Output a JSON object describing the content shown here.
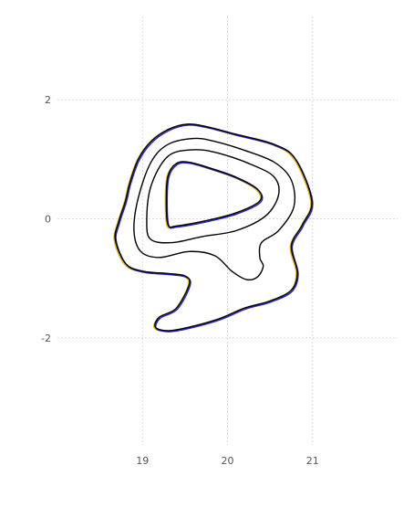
{
  "chart_data": {
    "type": "line",
    "title": "",
    "xlabel": "",
    "ylabel": "",
    "xlim": [
      18.0,
      22.0
    ],
    "ylim": [
      -3.8,
      3.4
    ],
    "grid": true,
    "x_ticks": [
      19,
      20,
      21
    ],
    "x_tick_labels": [
      "19",
      "20",
      "21"
    ],
    "y_ticks": [
      -2,
      0,
      2
    ],
    "y_tick_labels": [
      "-2",
      "0",
      "2"
    ],
    "series_colors": [
      "#e6b800",
      "#2020d0",
      "#000000"
    ],
    "series": [
      {
        "color": "#e6b800",
        "level": "outer",
        "x": [
          19.52,
          19.75,
          20.1,
          20.55,
          20.8,
          20.99,
          20.88,
          20.75,
          20.82,
          20.75,
          20.5,
          20.2,
          19.9,
          19.55,
          19.3,
          19.15,
          19.2,
          19.4,
          19.55,
          19.5,
          19.3,
          19.0,
          18.8,
          18.68,
          18.72,
          18.8,
          18.85,
          18.95,
          19.1,
          19.3
        ],
        "y": [
          1.59,
          1.55,
          1.42,
          1.25,
          1.0,
          0.3,
          -0.1,
          -0.45,
          -0.9,
          -1.2,
          -1.38,
          -1.5,
          -1.68,
          -1.82,
          -1.88,
          -1.82,
          -1.65,
          -1.5,
          -1.1,
          -0.96,
          -0.92,
          -0.88,
          -0.75,
          -0.35,
          -0.05,
          0.3,
          0.6,
          1.0,
          1.3,
          1.5
        ]
      },
      {
        "color": "#2020d0",
        "level": "outer",
        "x": [
          19.52,
          19.75,
          20.1,
          20.55,
          20.8,
          20.99,
          20.88,
          20.75,
          20.82,
          20.75,
          20.5,
          20.2,
          19.9,
          19.55,
          19.3,
          19.15,
          19.2,
          19.4,
          19.55,
          19.5,
          19.3,
          19.0,
          18.8,
          18.68,
          18.72,
          18.8,
          18.85,
          18.95,
          19.1,
          19.3
        ],
        "y": [
          1.59,
          1.55,
          1.42,
          1.25,
          1.0,
          0.3,
          -0.1,
          -0.45,
          -0.9,
          -1.2,
          -1.38,
          -1.5,
          -1.68,
          -1.82,
          -1.88,
          -1.82,
          -1.65,
          -1.5,
          -1.1,
          -0.96,
          -0.92,
          -0.88,
          -0.75,
          -0.35,
          -0.05,
          0.3,
          0.6,
          1.0,
          1.3,
          1.5
        ]
      },
      {
        "color": "#000000",
        "level": "outer",
        "x": [
          19.52,
          19.75,
          20.1,
          20.55,
          20.8,
          20.99,
          20.88,
          20.75,
          20.82,
          20.75,
          20.5,
          20.2,
          19.9,
          19.55,
          19.3,
          19.15,
          19.2,
          19.4,
          19.55,
          19.5,
          19.3,
          19.0,
          18.8,
          18.68,
          18.72,
          18.8,
          18.85,
          18.95,
          19.1,
          19.3
        ],
        "y": [
          1.59,
          1.55,
          1.42,
          1.25,
          1.0,
          0.3,
          -0.1,
          -0.45,
          -0.9,
          -1.2,
          -1.38,
          -1.5,
          -1.68,
          -1.82,
          -1.88,
          -1.82,
          -1.65,
          -1.5,
          -1.1,
          -0.96,
          -0.92,
          -0.88,
          -0.75,
          -0.35,
          -0.05,
          0.3,
          0.6,
          1.0,
          1.3,
          1.5
        ]
      },
      {
        "color": "#000000",
        "level": "second",
        "x": [
          19.6,
          19.85,
          20.2,
          20.55,
          20.75,
          20.78,
          20.6,
          20.4,
          20.38,
          20.42,
          20.35,
          20.22,
          20.05,
          19.85,
          19.55,
          19.2,
          18.98,
          18.9,
          18.95,
          19.1,
          19.3
        ],
        "y": [
          1.35,
          1.3,
          1.15,
          0.95,
          0.65,
          0.2,
          -0.2,
          -0.4,
          -0.65,
          -0.8,
          -0.98,
          -1.02,
          -0.88,
          -0.62,
          -0.55,
          -0.65,
          -0.55,
          -0.2,
          0.35,
          0.95,
          1.25
        ]
      },
      {
        "color": "#000000",
        "level": "third",
        "x": [
          19.6,
          19.9,
          20.3,
          20.55,
          20.6,
          20.45,
          20.1,
          19.7,
          19.35,
          19.1,
          19.05,
          19.1,
          19.3
        ],
        "y": [
          1.16,
          1.1,
          0.9,
          0.7,
          0.4,
          0.05,
          -0.2,
          -0.3,
          -0.4,
          -0.35,
          -0.05,
          0.55,
          1.05
        ]
      },
      {
        "color": "#e6b800",
        "level": "inner",
        "x": [
          19.55,
          19.8,
          20.1,
          20.35,
          20.38,
          20.1,
          19.75,
          19.4,
          19.3,
          19.28,
          19.3,
          19.4
        ],
        "y": [
          0.95,
          0.85,
          0.7,
          0.5,
          0.3,
          0.1,
          -0.03,
          -0.12,
          -0.1,
          0.3,
          0.72,
          0.93
        ]
      },
      {
        "color": "#2020d0",
        "level": "inner",
        "x": [
          19.55,
          19.8,
          20.1,
          20.35,
          20.38,
          20.1,
          19.75,
          19.4,
          19.3,
          19.28,
          19.3,
          19.4
        ],
        "y": [
          0.95,
          0.85,
          0.7,
          0.5,
          0.3,
          0.1,
          -0.03,
          -0.12,
          -0.1,
          0.3,
          0.72,
          0.93
        ]
      },
      {
        "color": "#000000",
        "level": "inner",
        "x": [
          19.55,
          19.8,
          20.1,
          20.35,
          20.38,
          20.1,
          19.75,
          19.4,
          19.3,
          19.28,
          19.3,
          19.4
        ],
        "y": [
          0.95,
          0.85,
          0.7,
          0.5,
          0.3,
          0.1,
          -0.03,
          -0.12,
          -0.1,
          0.3,
          0.72,
          0.93
        ]
      }
    ]
  }
}
